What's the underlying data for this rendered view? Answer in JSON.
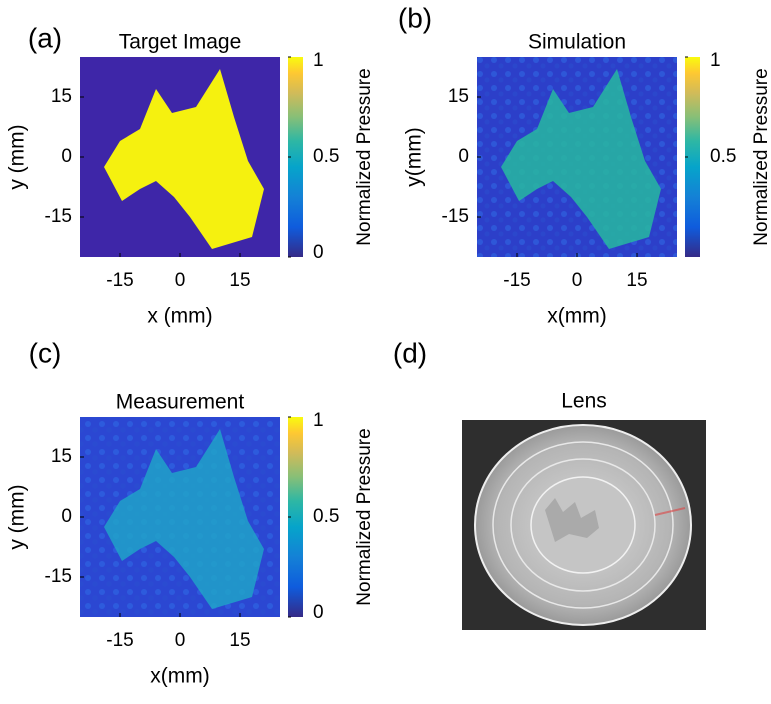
{
  "chart_data": [
    {
      "type": "heatmap",
      "panel_label": "(a)",
      "title": "Target Image",
      "xlabel": "x (mm)",
      "ylabel": "y (mm)",
      "xlim": [
        -25,
        25
      ],
      "ylim": [
        -25,
        25
      ],
      "xticks": [
        -15,
        0,
        15
      ],
      "yticks": [
        -15,
        0,
        15
      ],
      "colorbar": {
        "label": "Normalized Pressure",
        "lim": [
          0,
          1
        ],
        "ticks": [
          0,
          0.5,
          1
        ]
      }
    },
    {
      "type": "heatmap",
      "panel_label": "(b)",
      "title": "Simulation",
      "xlabel": "x(mm)",
      "ylabel": "y(mm)",
      "xlim": [
        -25,
        25
      ],
      "ylim": [
        -25,
        25
      ],
      "xticks": [
        -15,
        0,
        15
      ],
      "yticks": [
        -15,
        0,
        15
      ],
      "colorbar": {
        "label": "Normalized Pressure",
        "lim": [
          0,
          1
        ],
        "ticks": [
          0.5,
          1
        ]
      }
    },
    {
      "type": "heatmap",
      "panel_label": "(c)",
      "title": "Measurement",
      "xlabel": "x(mm)",
      "ylabel": "y (mm)",
      "xlim": [
        -25,
        25
      ],
      "ylim": [
        -25,
        25
      ],
      "xticks": [
        -15,
        0,
        15
      ],
      "yticks": [
        -15,
        0,
        15
      ],
      "colorbar": {
        "label": "Normalized Pressure",
        "lim": [
          0,
          1
        ],
        "ticks": [
          0,
          0.5,
          1
        ]
      }
    },
    {
      "type": "image",
      "panel_label": "(d)",
      "title": "Lens"
    }
  ]
}
